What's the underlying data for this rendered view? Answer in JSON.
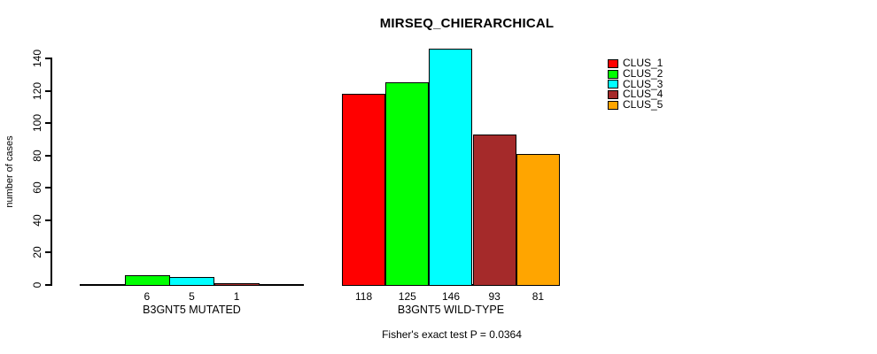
{
  "title": "MIRSEQ_CHIERARCHICAL",
  "y_axis": {
    "label": "number of cases",
    "ticks": [
      0,
      20,
      40,
      60,
      80,
      100,
      120,
      140
    ]
  },
  "footnote": "Fisher's exact test P = 0.0364",
  "legend": {
    "position": "top-right",
    "items": [
      {
        "label": "CLUS_1",
        "color": "#FF0000"
      },
      {
        "label": "CLUS_2",
        "color": "#00FF00"
      },
      {
        "label": "CLUS_3",
        "color": "#00FFFF"
      },
      {
        "label": "CLUS_4",
        "color": "#A52A2A"
      },
      {
        "label": "CLUS_5",
        "color": "#FFA500"
      }
    ]
  },
  "chart_data": {
    "type": "bar",
    "title": "MIRSEQ_CHIERARCHICAL",
    "ylabel": "number of cases",
    "ylim": [
      0,
      140
    ],
    "yticks": [
      0,
      20,
      40,
      60,
      80,
      100,
      120,
      140
    ],
    "grid": false,
    "legend_position": "top-right",
    "clusters": [
      "CLUS_1",
      "CLUS_2",
      "CLUS_3",
      "CLUS_4",
      "CLUS_5"
    ],
    "groups": [
      {
        "label": "B3GNT5 MUTATED",
        "slots": 5,
        "bars": [
          {
            "slot": 1,
            "cluster": "CLUS_2",
            "value": 6,
            "value_label": "6"
          },
          {
            "slot": 2,
            "cluster": "CLUS_3",
            "value": 5,
            "value_label": "5"
          },
          {
            "slot": 3,
            "cluster": "CLUS_4",
            "value": 1,
            "value_label": "1"
          }
        ]
      },
      {
        "label": "B3GNT5 WILD-TYPE",
        "slots": 5,
        "bars": [
          {
            "slot": 0,
            "cluster": "CLUS_1",
            "value": 118,
            "value_label": "118"
          },
          {
            "slot": 1,
            "cluster": "CLUS_2",
            "value": 125,
            "value_label": "125"
          },
          {
            "slot": 2,
            "cluster": "CLUS_3",
            "value": 146,
            "value_label": "146"
          },
          {
            "slot": 3,
            "cluster": "CLUS_4",
            "value": 93,
            "value_label": "93"
          },
          {
            "slot": 4,
            "cluster": "CLUS_5",
            "value": 81,
            "value_label": "81"
          }
        ]
      }
    ],
    "annotation": "Fisher's exact test P = 0.0364"
  }
}
